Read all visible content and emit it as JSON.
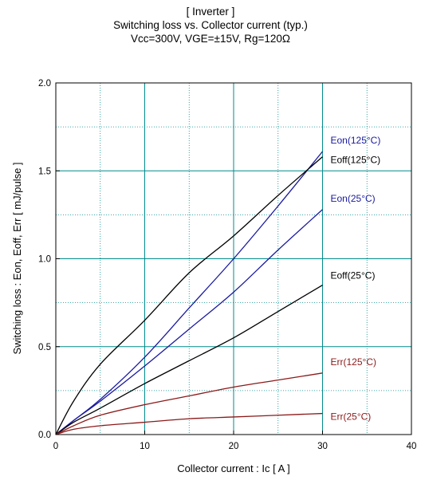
{
  "chart_data": {
    "type": "line",
    "title": "[ Inverter ]",
    "subtitle": "Switching loss  vs.  Collector current  (typ.)",
    "conditions": "Vcc=300V, VGE=±15V, Rg=120Ω",
    "xlabel": "Collector current  :  Ic  [ A ]",
    "ylabel": "Switching loss  :  Eon, Eoff, Err  [ mJ/pulse ]",
    "xlim": [
      0,
      40
    ],
    "ylim": [
      0,
      2.0
    ],
    "x_ticks": [
      "0",
      "10",
      "20",
      "30",
      "40"
    ],
    "y_ticks": [
      "0.0",
      "0.5",
      "1.0",
      "1.5",
      "2.0"
    ],
    "grid": "major solid teal, minor dotted",
    "series": [
      {
        "name": "Eon(125°C)",
        "color": "#1a1aa0",
        "x": [
          0,
          2,
          5,
          10,
          15,
          20,
          25,
          30
        ],
        "y": [
          0,
          0.08,
          0.2,
          0.44,
          0.72,
          1.0,
          1.3,
          1.61
        ]
      },
      {
        "name": "Eoff(125°C)",
        "color": "#000000",
        "x": [
          0,
          2,
          5,
          10,
          15,
          20,
          25,
          30
        ],
        "y": [
          0,
          0.19,
          0.4,
          0.65,
          0.92,
          1.13,
          1.36,
          1.58
        ]
      },
      {
        "name": "Eon(25°C)",
        "color": "#1a1aa0",
        "x": [
          0,
          2,
          5,
          10,
          15,
          20,
          25,
          30
        ],
        "y": [
          0,
          0.08,
          0.19,
          0.39,
          0.6,
          0.81,
          1.05,
          1.28
        ]
      },
      {
        "name": "Eoff(25°C)",
        "color": "#000000",
        "x": [
          0,
          2,
          5,
          10,
          15,
          20,
          25,
          30
        ],
        "y": [
          0,
          0.07,
          0.15,
          0.29,
          0.42,
          0.55,
          0.7,
          0.85
        ]
      },
      {
        "name": "Err(125°C)",
        "color": "#8b1a1a",
        "x": [
          0,
          2,
          5,
          10,
          15,
          20,
          25,
          30
        ],
        "y": [
          0,
          0.05,
          0.11,
          0.17,
          0.22,
          0.27,
          0.31,
          0.35
        ]
      },
      {
        "name": "Err(25°C)",
        "color": "#8b1a1a",
        "x": [
          0,
          2,
          5,
          10,
          15,
          20,
          25,
          30
        ],
        "y": [
          0,
          0.03,
          0.05,
          0.07,
          0.09,
          0.1,
          0.11,
          0.12
        ]
      }
    ]
  },
  "colors": {
    "major_grid": "#008b8b",
    "minor_grid": "#008b8b",
    "frame": "#000000"
  }
}
